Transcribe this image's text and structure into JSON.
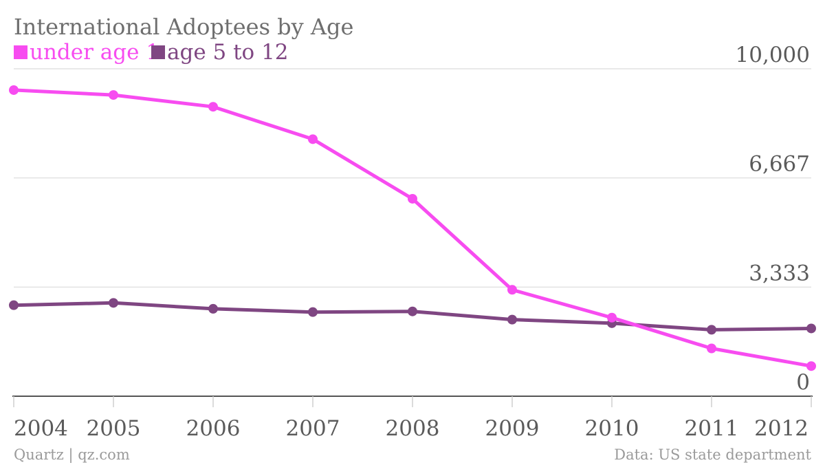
{
  "chart_data": {
    "type": "line",
    "title": "International Adoptees by Age",
    "categories": [
      "2004",
      "2005",
      "2006",
      "2007",
      "2008",
      "2009",
      "2010",
      "2011",
      "2012"
    ],
    "series": [
      {
        "name": "under age 1",
        "color": "#f74cf0",
        "values": [
          9350,
          9200,
          8840,
          7850,
          6030,
          3250,
          2400,
          1460,
          920
        ]
      },
      {
        "name": "age 5 to 12",
        "color": "#7f4682",
        "values": [
          2780,
          2850,
          2670,
          2570,
          2590,
          2340,
          2230,
          2030,
          2070
        ]
      }
    ],
    "ylim": [
      0,
      10000
    ],
    "yticks": [
      "0",
      "3,333",
      "6,667",
      "10,000"
    ],
    "ytick_values": [
      0,
      3333,
      6667,
      10000
    ],
    "grid": true,
    "legend_position": "top-left",
    "xlabel": "",
    "ylabel": ""
  },
  "footer": {
    "source_left": "Quartz | qz.com",
    "source_right": "Data: US state department"
  }
}
